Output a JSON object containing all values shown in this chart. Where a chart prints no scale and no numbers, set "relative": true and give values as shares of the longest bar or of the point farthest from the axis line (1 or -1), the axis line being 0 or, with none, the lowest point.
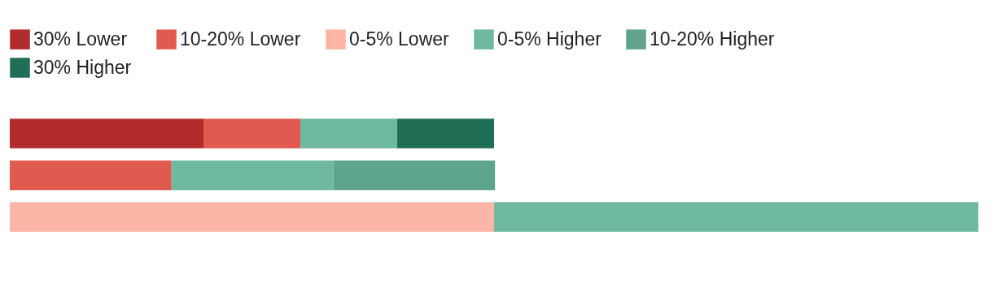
{
  "chart_data": {
    "type": "bar",
    "orientation": "horizontal",
    "stacked": true,
    "relative": true,
    "legend": "top left",
    "categories": [
      null,
      null,
      null
    ],
    "series": [
      {
        "name": "30% Lower",
        "color": "#b22c2e",
        "values": [
          0.2,
          null,
          null
        ]
      },
      {
        "name": "10-20% Lower",
        "color": "#e05a4f",
        "values": [
          0.1,
          0.167,
          null
        ]
      },
      {
        "name": "0-5% Lower",
        "color": "#fdb5a5",
        "values": [
          null,
          null,
          0.5
        ]
      },
      {
        "name": "0-5% Higher",
        "color": "#6fb9a0",
        "values": [
          0.1,
          0.167,
          0.5
        ]
      },
      {
        "name": "10-20% Higher",
        "color": "#5fa58c",
        "values": [
          null,
          0.167,
          null
        ]
      },
      {
        "name": "30% Higher",
        "color": "#216e57",
        "values": [
          0.1,
          null,
          null
        ]
      }
    ]
  }
}
